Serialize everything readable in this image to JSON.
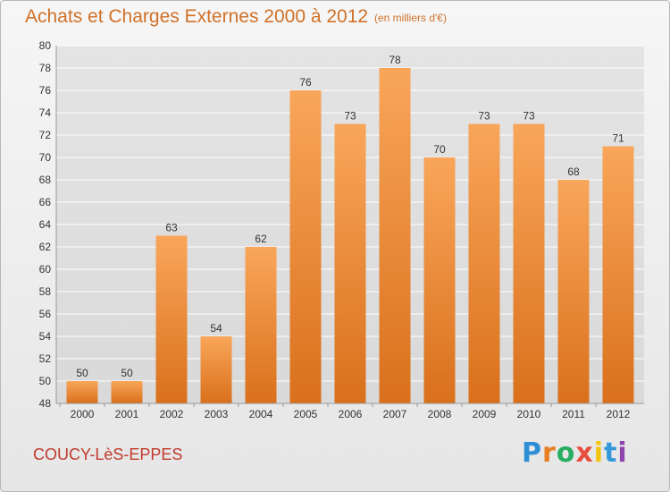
{
  "header": {
    "title": "Achats et Charges Externes 2000 à 2012",
    "subtitle": "(en milliers d'€)"
  },
  "footer": {
    "city": "COUCY-LèS-EPPES",
    "brand": "Proxiti"
  },
  "colors": {
    "title": "#d07128",
    "city": "#c0392b",
    "bar_top": "#f9a65a",
    "bar_bottom": "#d9701c",
    "grid": "#ffffff",
    "axis_text": "#333333",
    "brand_letters": [
      "#2f8fd6",
      "#e67e22",
      "#27ae60",
      "#e74c3c",
      "#f1c40f",
      "#3498db",
      "#8e44ad"
    ]
  },
  "chart_data": {
    "type": "bar",
    "title": "Achats et Charges Externes 2000 à 2012",
    "subtitle": "(en milliers d'€)",
    "xlabel": "",
    "ylabel": "",
    "categories": [
      "2000",
      "2001",
      "2002",
      "2003",
      "2004",
      "2005",
      "2006",
      "2007",
      "2008",
      "2009",
      "2010",
      "2011",
      "2012"
    ],
    "values": [
      50,
      50,
      63,
      54,
      62,
      76,
      73,
      78,
      70,
      73,
      73,
      68,
      71
    ],
    "data_labels": [
      "50",
      "50",
      "63",
      "54",
      "62",
      "76",
      "73",
      "78",
      "70",
      "73",
      "73",
      "68",
      "71"
    ],
    "ylim": [
      48,
      80
    ],
    "yticks": [
      "48",
      "50",
      "52",
      "54",
      "56",
      "58",
      "60",
      "62",
      "64",
      "66",
      "68",
      "70",
      "72",
      "74",
      "76",
      "78",
      "80"
    ],
    "grid": true,
    "legend": "none"
  }
}
